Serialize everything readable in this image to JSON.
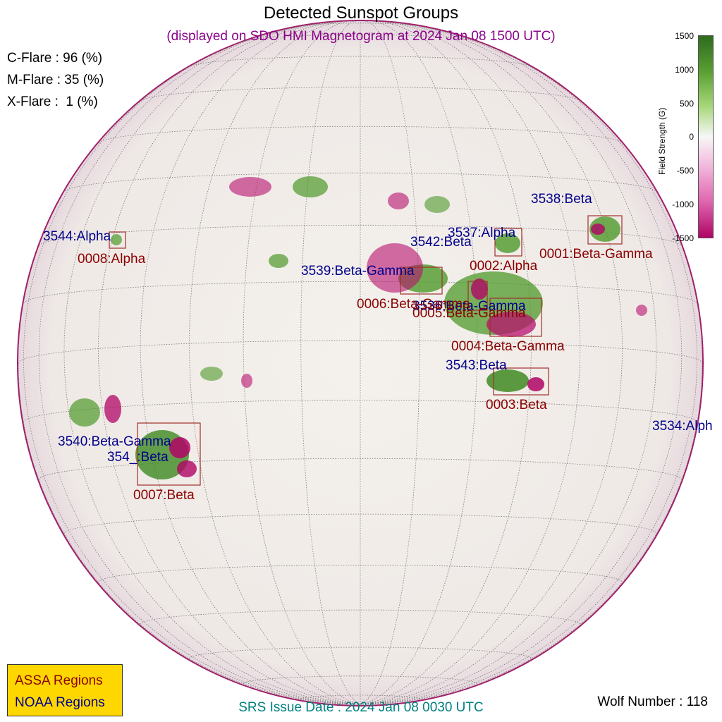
{
  "header": {
    "title": "Detected Sunspot Groups",
    "subtitle": "(displayed on SDO HMI Magnetogram at 2024 Jan 08 1500 UTC)"
  },
  "flare_probabilities": [
    {
      "label": "C-Flare : 96 (%)"
    },
    {
      "label": "M-Flare : 35 (%)"
    },
    {
      "label": "X-Flare :  1 (%)"
    }
  ],
  "colorbar": {
    "label": "Field Strength (G)",
    "ticks": [
      "1500",
      "1000",
      "500",
      "0",
      "-500",
      "-1000",
      "-1500"
    ],
    "positive_color": "#2e6b1e",
    "negative_color": "#b00565"
  },
  "noaa_regions": [
    {
      "name": "3538:Beta"
    },
    {
      "name": "3544:Alpha"
    },
    {
      "name": "3537:Alpha"
    },
    {
      "name": "3542:Beta"
    },
    {
      "name": "3539:Beta-Gamma"
    },
    {
      "name": "3536:Beta-Gamma"
    },
    {
      "name": "3543:Beta"
    },
    {
      "name": "3534:Alph"
    },
    {
      "name": "3540:Beta-Gamma"
    },
    {
      "name": "354_:Beta"
    }
  ],
  "assa_regions": [
    {
      "name": "0001:Beta-Gamma"
    },
    {
      "name": "0008:Alpha"
    },
    {
      "name": "0002:Alpha"
    },
    {
      "name": "0006:Beta-Gamma"
    },
    {
      "name": "0005:Beta-Gamma"
    },
    {
      "name": "0004:Beta-Gamma"
    },
    {
      "name": "0003:Beta"
    },
    {
      "name": "0007:Beta"
    }
  ],
  "legend": {
    "assa": "ASSA Regions",
    "noaa": "NOAA Regions",
    "assa_color": "#8b0000",
    "noaa_color": "#00008b"
  },
  "footer": {
    "issue_date": "SRS Issue Date : 2024 Jan 08 0030 UTC",
    "wolf_number": "Wolf Number : 118"
  }
}
